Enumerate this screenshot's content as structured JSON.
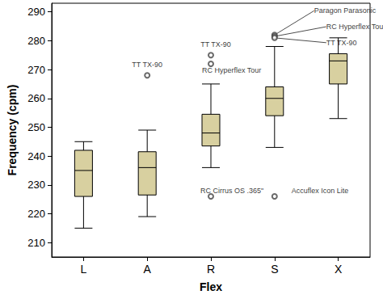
{
  "chart_data": {
    "type": "boxplot",
    "x_label": "Flex",
    "y_label": "Frequency (cpm)",
    "categories": [
      "L",
      "A",
      "R",
      "S",
      "X"
    ],
    "values": [
      [
        215,
        226,
        235,
        242,
        245
      ],
      [
        219,
        226.5,
        236,
        241.5,
        249
      ],
      [
        236,
        243.5,
        248,
        254.5,
        265
      ],
      [
        243,
        254,
        260,
        264,
        278
      ],
      [
        253,
        265,
        273,
        275.5,
        281
      ]
    ],
    "outliers": [
      {
        "category": "A",
        "value": 268,
        "label": "TT TX-90"
      },
      {
        "category": "R",
        "value": 275,
        "label": "TT TX-90"
      },
      {
        "category": "R",
        "value": 272,
        "label": "RC Hyperflex Tour"
      },
      {
        "category": "R",
        "value": 226,
        "label": "RC Cirrus OS .365\""
      },
      {
        "category": "S",
        "value": 226,
        "label": "Accuflex Icon Lite"
      },
      {
        "category": "S",
        "value": 282,
        "label": "Paragon Parasonic"
      },
      {
        "category": "S",
        "value": 281.5,
        "label": "RC Hyperflex Tour"
      },
      {
        "category": "S",
        "value": 281,
        "label": "TT TX-90"
      }
    ],
    "color": "#d8d0a0",
    "ylim": [
      205,
      293
    ],
    "yticks": [
      210,
      220,
      230,
      240,
      250,
      260,
      270,
      280,
      290
    ],
    "grid": false
  }
}
